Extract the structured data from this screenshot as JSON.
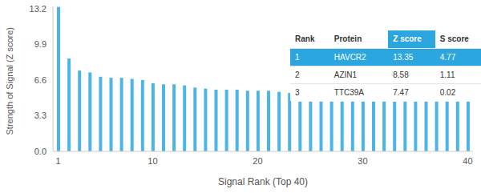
{
  "chart_data": {
    "type": "bar",
    "x_label": "Signal Rank (Top 40)",
    "y_label": "Strength of Signal (Z score)",
    "categories": [
      "1",
      null,
      null,
      null,
      null,
      null,
      null,
      null,
      null,
      "10",
      null,
      null,
      null,
      null,
      null,
      null,
      null,
      null,
      null,
      "20",
      null,
      null,
      null,
      null,
      null,
      null,
      null,
      null,
      null,
      "30",
      null,
      null,
      null,
      null,
      null,
      null,
      null,
      null,
      null,
      "40"
    ],
    "values": [
      13.35,
      8.58,
      7.47,
      7.3,
      6.9,
      6.8,
      6.8,
      6.7,
      6.6,
      6.3,
      6.2,
      6.2,
      6.1,
      5.9,
      5.8,
      5.7,
      5.7,
      5.7,
      5.6,
      5.6,
      5.6,
      5.5,
      5.4,
      4.6,
      4.6,
      4.6,
      4.6,
      4.6,
      4.6,
      4.6,
      4.6,
      4.6,
      4.6,
      4.6,
      4.6,
      4.6,
      4.6,
      4.6,
      4.6,
      4.6
    ],
    "color": "#4cb5e6",
    "ylim": [
      0,
      13.4
    ],
    "yticks": [
      {
        "value": 0,
        "label": "0.0"
      },
      3.3,
      6.6,
      9.9,
      13.2
    ],
    "grid": false
  },
  "table": {
    "columns": [
      "Rank",
      "Protein",
      "Z score",
      "S score"
    ],
    "rows": [
      [
        1,
        "HAVCR2",
        13.35,
        4.77
      ],
      [
        2,
        "AZIN1",
        8.58,
        1.11
      ],
      [
        3,
        "TTC39A",
        7.47,
        0.02
      ]
    ]
  }
}
